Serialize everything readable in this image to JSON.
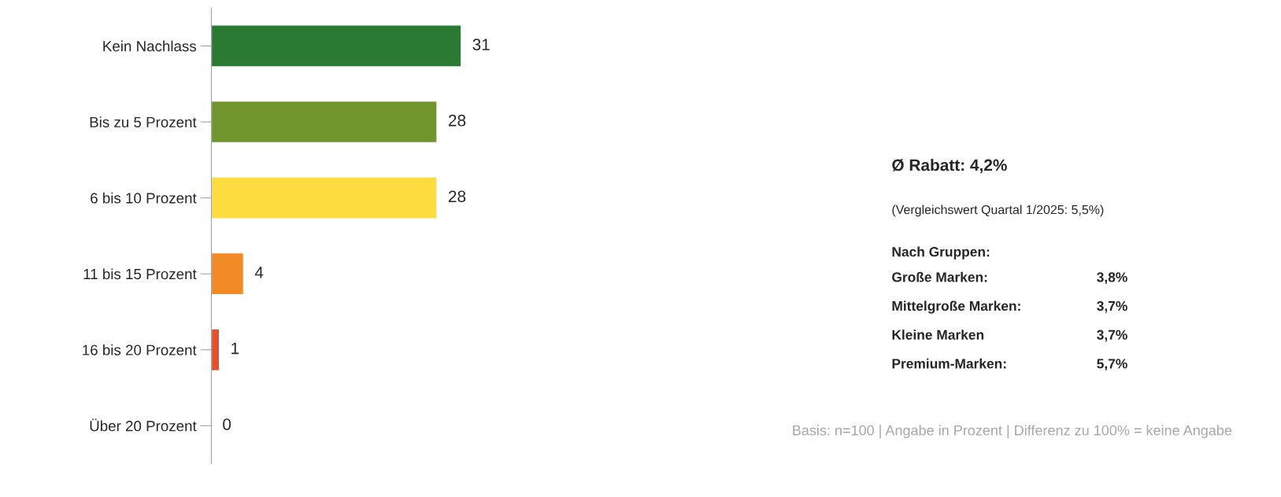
{
  "chart_data": {
    "type": "bar",
    "orientation": "horizontal",
    "categories": [
      "Kein Nachlass",
      "Bis zu 5 Prozent",
      "6 bis 10 Prozent",
      "11 bis 15 Prozent",
      "16 bis 20 Prozent",
      "Über 20 Prozent"
    ],
    "values": [
      31,
      28,
      28,
      4,
      1,
      0
    ],
    "colors": [
      "#2a7a34",
      "#71952d",
      "#fddc3f",
      "#f28a25",
      "#e8502a",
      null
    ],
    "data_labels": true,
    "grid": false,
    "legend": false,
    "tick_labels": "y",
    "annotations": [
      "Ø Rabatt: 4,2%",
      "(Vergleichswert Quartal 1/2025: 5,5%)",
      "Nach Gruppen:",
      "Große Marken:",
      "3,8%",
      "Mittelgroße Marken:",
      "3,7%",
      "Kleine Marken",
      "3,7%",
      "Premium-Marken:",
      "5,7%",
      "Basis: n=100 | Angabe in Prozent | Differenz zu 100% = keine Angabe"
    ]
  }
}
